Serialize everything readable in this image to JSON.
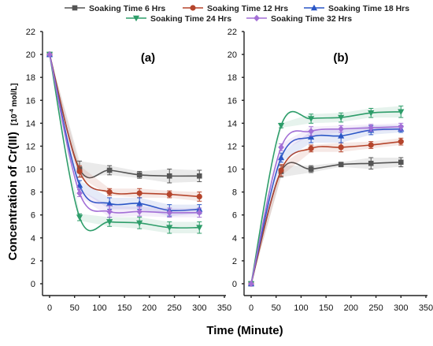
{
  "chart_data": {
    "type": "line",
    "ylabel_main": "Concentration of Cr(III)",
    "ylabel_unit": "[10",
    "ylabel_exp": "-4",
    "ylabel_tail": " mol/L]",
    "xlabel": "Time (Minute)",
    "xticks": [
      "0",
      "50",
      "100",
      "150",
      "200",
      "250",
      "300",
      "350"
    ],
    "yticks": [
      "0",
      "2",
      "4",
      "6",
      "8",
      "10",
      "12",
      "14",
      "16",
      "18",
      "20",
      "22"
    ],
    "xlim": [
      0,
      350
    ],
    "ylim": [
      0,
      22
    ],
    "grid": false,
    "legend_position": "top",
    "x": [
      0,
      60,
      120,
      180,
      240,
      300
    ],
    "series": [
      {
        "name": "Soaking Time 6 Hrs",
        "color": "#555555",
        "marker": "square"
      },
      {
        "name": "Soaking Time 12 Hrs",
        "color": "#b5452c",
        "marker": "circle"
      },
      {
        "name": "Soaking Time 18 Hrs",
        "color": "#2a56c6",
        "marker": "triangle-up"
      },
      {
        "name": "Soaking Time 24 Hrs",
        "color": "#2e9d6a",
        "marker": "triangle-down"
      },
      {
        "name": "Soaking Time 32 Hrs",
        "color": "#a36fd6",
        "marker": "diamond"
      }
    ],
    "panels": [
      {
        "label": "(a)",
        "values": [
          [
            20,
            10,
            9.9,
            9.5,
            9.4,
            9.4
          ],
          [
            20,
            9.8,
            8.0,
            7.9,
            7.8,
            7.6
          ],
          [
            20,
            8.6,
            7.0,
            7.0,
            6.4,
            6.5
          ],
          [
            20,
            5.8,
            5.4,
            5.3,
            4.9,
            4.9
          ],
          [
            20,
            7.9,
            6.3,
            6.3,
            6.2,
            6.2
          ]
        ],
        "errors": [
          [
            0,
            0.7,
            0.4,
            0.3,
            0.6,
            0.5
          ],
          [
            0,
            0.5,
            0.3,
            0.4,
            0.3,
            0.4
          ],
          [
            0,
            0.4,
            0.5,
            0.5,
            0.5,
            0.4
          ],
          [
            0,
            0.3,
            0.4,
            0.5,
            0.5,
            0.5
          ],
          [
            0,
            0.3,
            0.5,
            0.4,
            0.4,
            0.4
          ]
        ]
      },
      {
        "label": "(b)",
        "values": [
          [
            0,
            9.8,
            10.0,
            10.4,
            10.5,
            10.6
          ],
          [
            0,
            9.9,
            11.8,
            11.9,
            12.1,
            12.4
          ],
          [
            0,
            11.0,
            12.8,
            12.9,
            13.4,
            13.5
          ],
          [
            0,
            13.8,
            14.4,
            14.5,
            14.9,
            15.0
          ],
          [
            0,
            11.9,
            13.3,
            13.5,
            13.6,
            13.7
          ]
        ],
        "errors": [
          [
            0,
            0.5,
            0.3,
            0.2,
            0.5,
            0.4
          ],
          [
            0,
            0.5,
            0.3,
            0.4,
            0.3,
            0.3
          ],
          [
            0,
            0.4,
            0.5,
            0.6,
            0.4,
            0.3
          ],
          [
            0,
            0.2,
            0.4,
            0.4,
            0.4,
            0.5
          ],
          [
            0,
            0.3,
            0.4,
            0.3,
            0.3,
            0.3
          ]
        ]
      }
    ]
  }
}
